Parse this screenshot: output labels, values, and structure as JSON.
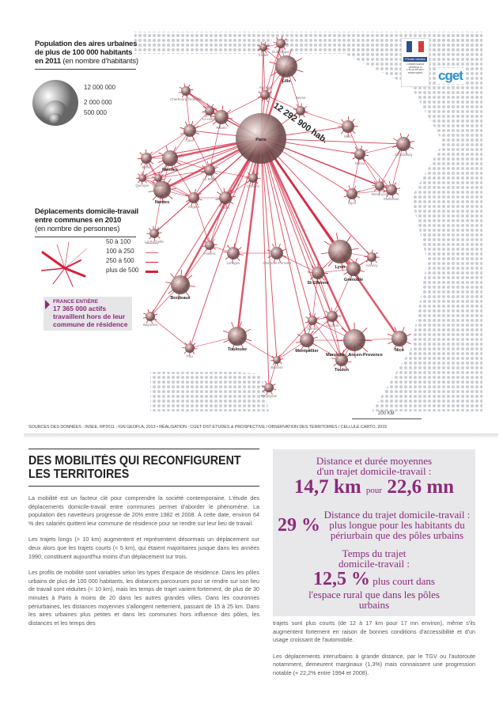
{
  "legend_population": {
    "title": "Population des aires urbaines de plus de 100 000 habitants en 2011",
    "unit": "(en nombre d'habitants)",
    "values": [
      "12 000 000",
      "2 000 000",
      "500 000"
    ]
  },
  "legend_flows": {
    "title": "Déplacements domicile-travail entre communes en 2010",
    "unit": "(en nombre de personnes)",
    "classes": [
      "50 à 100",
      "100 à 250",
      "250 à 500",
      "plus de 500"
    ]
  },
  "france_entiere": {
    "label": "FRANCE ENTIÈRE",
    "text": "17 365 000 actifs travaillent hors de leur commune de résidence"
  },
  "logos": {
    "marianne_caption": "Premier ministre",
    "cget_caption": "COMMISSARIAT GÉNÉRAL À L'ÉGALITÉ DES TERRITOIRES",
    "cget": "cget"
  },
  "map": {
    "cities": [
      "Paris",
      "Lille",
      "Rennes",
      "Nantes",
      "Bordeaux",
      "Toulouse",
      "Montpellier",
      "Marseille - Aix-en-Provence",
      "Toulon",
      "Nice",
      "Lyon",
      "St-Etienne",
      "Grenoble",
      "Strasbourg",
      "Avignon",
      "Rouen",
      "Caen",
      "Le Havre",
      "Metz",
      "Nancy",
      "Dijon",
      "Tours",
      "Orléans",
      "Angers",
      "Le Mans",
      "Brest",
      "Limoges",
      "Clermont-Ferrand",
      "Mulhouse",
      "Besançon",
      "Reims",
      "Amiens",
      "Poitiers",
      "Pau",
      "Perpignan",
      "Bayonne",
      "La Rochelle",
      "Dunkerque",
      "Calais",
      "Cherbourg-Octeville",
      "Quimper",
      "Lorient",
      "Nîmes",
      "Béziers",
      "Annecy"
    ],
    "colors": {
      "flow": "#d4203a",
      "bubble": "#a88a88",
      "dots": "#c9ccd1"
    },
    "paris_label": "12 292 900 hab.",
    "scale": "200 KM"
  },
  "sources": "SOURCES DES DONNÉES : INSEE, RP2011 ; IGN GEOFLA, 2013 • RÉALISATION : CGET-DST-ETUDES & PROSPECTIVE / OBSERVATION DES TERRITOIRES / CELLULE CARTO, 2015",
  "article": {
    "title": "DES MOBILITÉS QUI RECONFIGURENT LES TERRITOIRES",
    "paragraphs": [
      "La mobilité est un facteur clé pour comprendre la société contemporaine. L'étude des déplacements domicile-travail entre communes permet d'aborder le phénomène. La population des navetteurs progresse de 20% entre 1982 et 2008. À cette date, environ 64 % des salariés quittent leur commune de résidence pour se rendre sur leur lieu de travail.",
      "Les trajets longs (> 10 km) augmentent et représentent désormais un déplacement sur deux alors que les trajets courts (< 5 km), qui étaient majoritaires jusque dans les années 1990, constituent aujourd'hui moins d'un déplacement sur trois.",
      "Les profils de mobilité sont variables selon les types d'espace de résidence. Dans les pôles urbains de plus de 100 000 habitants, les distances parcourues pour se rendre sur son lieu de travail sont réduites (< 10 km), mais les temps de trajet varient fortement, de plus de 30 minutes à Paris à moins de 20 dans les autres grandes villes. Dans les couronnes périurbaines, les distances moyennes s'allongent nettement, passant de 15 à 25 km. Dans les aires urbaines plus petites et dans les communes hors influence des pôles, les distances et les temps des",
      "trajets sont plus courts (de 12 à 17 km pour 17 mn environ), même s'ils augmentent fortement en raison de bonnes conditions d'accessibilité et d'un usage croissant de l'automobile.",
      "Les déplacements interurbains à grande distance, par le TGV ou l'autoroute notamment, demeurent marginaux (1,3%) mais connaissent une progression notable (+ 22,2% entre 1994 et 2008)."
    ]
  },
  "infobox": {
    "s1_text": "Distance et durée moyennes d'un trajet domicile-travail :",
    "s1_km": "14,7 km",
    "s1_pour": "pour",
    "s1_mn": "22,6 mn",
    "s2_pct": "29 %",
    "s2_text": "Distance du trajet domicile-travail : plus longue pour les habitants du périurbain que des pôles urbains",
    "s3_pre": "Temps du trajet domicile-travail :",
    "s3_pct": "12,5 %",
    "s3_text": "plus court dans l'espace rural que dans les pôles urbains"
  }
}
